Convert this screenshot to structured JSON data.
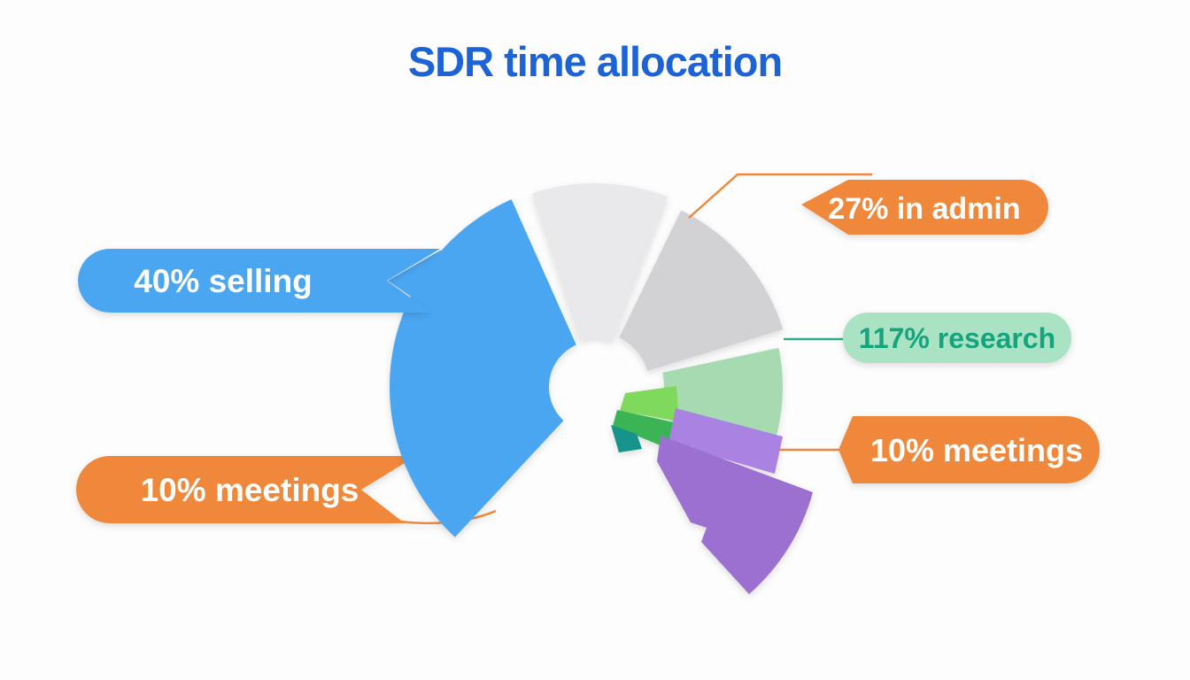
{
  "title": "SDR time allocation",
  "palette": {
    "title_blue": "#1B63D6",
    "blue": "#4BA6F2",
    "light_gray": "#E9E9EB",
    "gray": "#D2D2D4",
    "light_green": "#A6DAB1",
    "bright_green": "#7FD95C",
    "green": "#3BB454",
    "teal": "#12948C",
    "light_purple": "#A982E2",
    "purple": "#9B6FD0",
    "orange": "#F0883B",
    "research_bg": "#A9E3C3",
    "research_text": "#14A47E",
    "leader_green": "#2FAE8C",
    "white": "#FFFFFF"
  },
  "callouts": [
    {
      "id": "selling",
      "text": "40% selling"
    },
    {
      "id": "admin",
      "text": "27% in admin"
    },
    {
      "id": "research",
      "text": "117% research"
    },
    {
      "id": "meetings_right",
      "text": "10% meetings"
    },
    {
      "id": "meetings_left",
      "text": "10% meetings"
    }
  ],
  "chart_data": {
    "type": "pie",
    "title": "SDR time allocation",
    "legend_position": "callouts",
    "segments": [
      {
        "label": "selling",
        "shown_value": "40%",
        "color": "#4BA6F2"
      },
      {
        "label": "in admin",
        "shown_value": "27%",
        "color": "#D2D2D4"
      },
      {
        "label": "research",
        "shown_value": "117%",
        "color": "#A6DAB1"
      },
      {
        "label": "meetings",
        "shown_value": "10%",
        "color": "#9B6FD0"
      },
      {
        "label": "meetings",
        "shown_value": "10%",
        "color": "#F0883B"
      }
    ],
    "layout_hints": "exploded donut infographic; admin drawn as two gray wedges; unlabeled small green, teal and purple accent wedges at lower right; purple meetings fan offset outward"
  }
}
